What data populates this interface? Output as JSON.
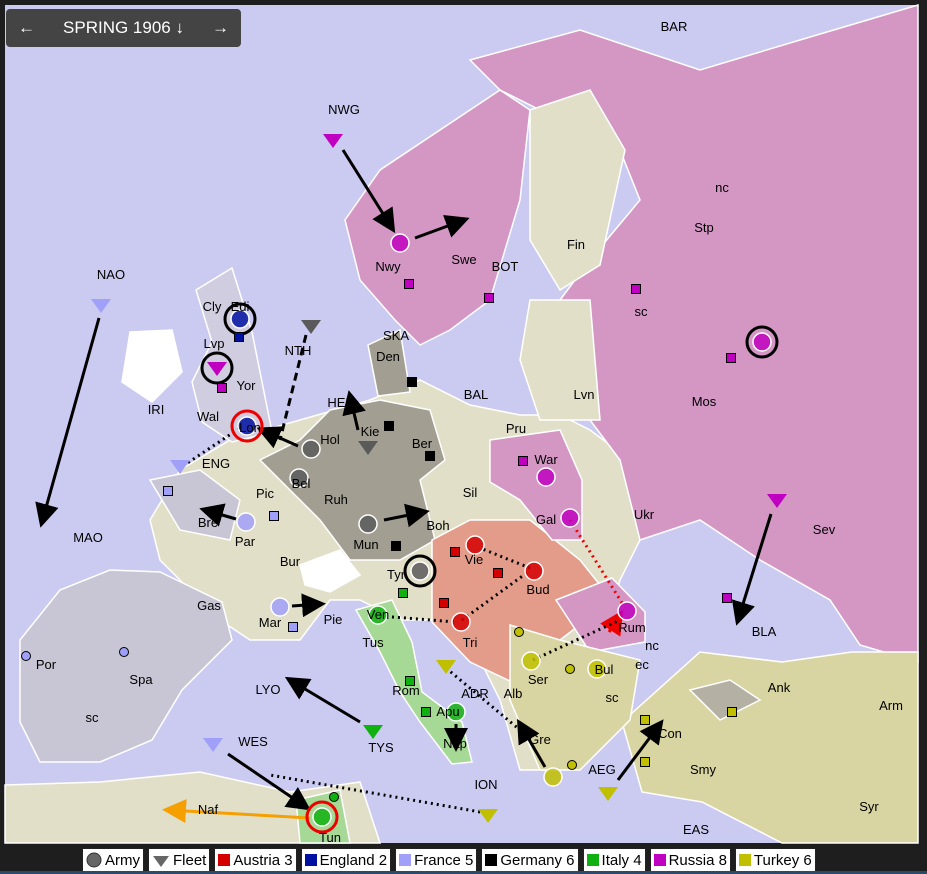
{
  "header": {
    "prev": "←",
    "phase": "SPRING 1906",
    "phase_icon": "↓",
    "next": "→"
  },
  "legend": {
    "army": "Army",
    "fleet": "Fleet",
    "countries": [
      {
        "label": "Austria 3",
        "color": "#d40000"
      },
      {
        "label": "England 2",
        "color": "#0010a0"
      },
      {
        "label": "France 5",
        "color": "#a0a0f8"
      },
      {
        "label": "Germany 6",
        "color": "#000000"
      },
      {
        "label": "Italy 4",
        "color": "#10b010"
      },
      {
        "label": "Russia 8",
        "color": "#c000c0"
      },
      {
        "label": "Turkey 6",
        "color": "#c0c000"
      }
    ]
  },
  "provinces": [
    "BAR",
    "NWG",
    "nc",
    "Stp",
    "Fin",
    "Swe",
    "Nwy",
    "BOT",
    "NAO",
    "Cly",
    "Edi",
    "sc",
    "Lvp",
    "NTH",
    "SKA",
    "Den",
    "Mos",
    "Yor",
    "IRI",
    "HEL",
    "BAL",
    "Lvn",
    "Wal",
    "Lon",
    "Kie",
    "Ber",
    "Hol",
    "Pru",
    "ENG",
    "War",
    "Bel",
    "Pic",
    "Ruh",
    "Sil",
    "MAO",
    "Bre",
    "Par",
    "Gal",
    "Ukr",
    "Sev",
    "Mun",
    "Boh",
    "Vie",
    "Bur",
    "Tyr",
    "Bud",
    "Gas",
    "Mar",
    "Pie",
    "Ven",
    "Tri",
    "Rum",
    "nc",
    "BLA",
    "Tus",
    "Por",
    "Spa",
    "LYO",
    "Ser",
    "Bul",
    "ec",
    "Rom",
    "ADR",
    "Alb",
    "sc",
    "sc",
    "Ank",
    "Arm",
    "Apu",
    "Con",
    "WES",
    "TYS",
    "Gre",
    "Nap",
    "AEG",
    "Smy",
    "ION",
    "Naf",
    "Syr",
    "Tun",
    "EAS"
  ]
}
